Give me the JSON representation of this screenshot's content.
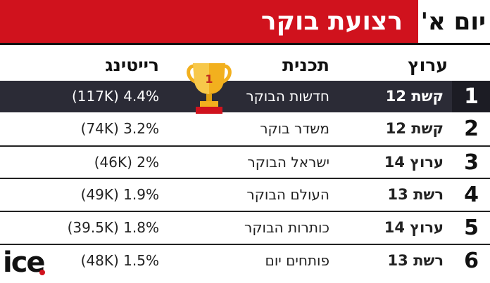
{
  "header": {
    "title": "רצועת בוקר",
    "day": "יום א'"
  },
  "columns": {
    "channel": "ערוץ",
    "program": "תכנית",
    "rating": "רייטינג"
  },
  "rows": [
    {
      "rank": "1",
      "channel": "קשת 12",
      "program": "חדשות הבוקר",
      "rating": "(117K) 4.4%"
    },
    {
      "rank": "2",
      "channel": "קשת 12",
      "program": "משדר בוקר",
      "rating": "(74K) 3.2%"
    },
    {
      "rank": "3",
      "channel": "ערוץ 14",
      "program": "ישראל הבוקר",
      "rating": "(46K) 2%"
    },
    {
      "rank": "4",
      "channel": "רשת 13",
      "program": "העולם הבוקר",
      "rating": "(49K) 1.9%"
    },
    {
      "rank": "5",
      "channel": "ערוץ 14",
      "program": "כותרות הבוקר",
      "rating": "(39.5K) 1.8%"
    },
    {
      "rank": "6",
      "channel": "רשת 13",
      "program": "פותחים יום",
      "rating": "(48K) 1.5%"
    }
  ],
  "trophy_number": "1",
  "logo": "ice",
  "colors": {
    "accent": "#d0121d",
    "highlight_row": "#2b2b36",
    "trophy_gold": "#f2b01e"
  }
}
